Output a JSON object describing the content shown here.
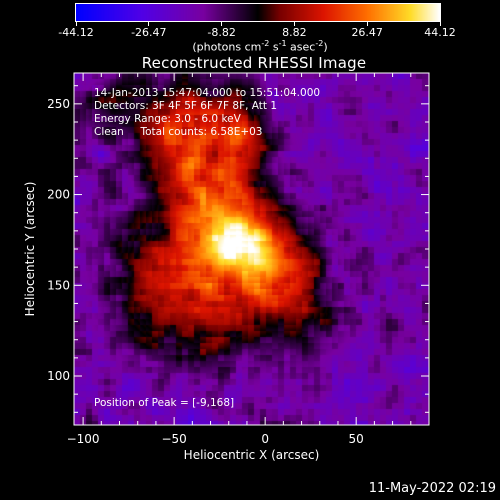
{
  "chart_data": {
    "type": "heatmap",
    "title": "Reconstructed RHESSI Image",
    "xlabel": "Heliocentric X (arcsec)",
    "ylabel": "Heliocentric Y (arcsec)",
    "xlim": [
      -105,
      90
    ],
    "ylim": [
      73,
      267
    ],
    "xticks": [
      -100,
      -50,
      0,
      50
    ],
    "yticks": [
      100,
      150,
      200,
      250
    ],
    "annotations": [
      "14-Jan-2013 15:47:04.000 to 15:51:04.000",
      "Detectors: 3F 4F 5F 6F 7F 8F, Att 1",
      "Energy Range: 3.0 - 6.0 keV",
      "Clean     Total counts: 6.58E+03"
    ],
    "peak_label": "Position of Peak = [-9,168]",
    "peak": [
      -9,
      168
    ],
    "colorbar": {
      "min": -44.12,
      "max": 44.12,
      "ticks": [
        "-44.12",
        "-26.47",
        "-8.82",
        "8.82",
        "26.47",
        "44.12"
      ],
      "unit_prefix": "(photons cm",
      "unit_exp1": "-2",
      "unit_mid1": " s",
      "unit_exp2": "-1",
      "unit_mid2": " asec",
      "unit_exp3": "-2",
      "unit_suffix": ")"
    },
    "sources": [
      {
        "x": -10,
        "y": 167,
        "sx": 22,
        "sy": 16,
        "amp": 44
      },
      {
        "x": -28,
        "y": 200,
        "sx": 22,
        "sy": 22,
        "amp": 26
      },
      {
        "x": -48,
        "y": 238,
        "sx": 18,
        "sy": 20,
        "amp": 22
      },
      {
        "x": -15,
        "y": 238,
        "sx": 12,
        "sy": 14,
        "amp": 18
      },
      {
        "x": -58,
        "y": 150,
        "sx": 18,
        "sy": 26,
        "amp": 18
      },
      {
        "x": 15,
        "y": 140,
        "sx": 16,
        "sy": 18,
        "amp": 16
      },
      {
        "x": -25,
        "y": 128,
        "sx": 16,
        "sy": 16,
        "amp": 12
      },
      {
        "x": -85,
        "y": 250,
        "sx": 10,
        "sy": 10,
        "amp": 10
      }
    ],
    "background": -16,
    "noise_amp": 10
  },
  "footer": {
    "date_stamp": "11-May-2022 02:19"
  },
  "colors": {
    "background": "#000000",
    "text": "#ffffff"
  }
}
